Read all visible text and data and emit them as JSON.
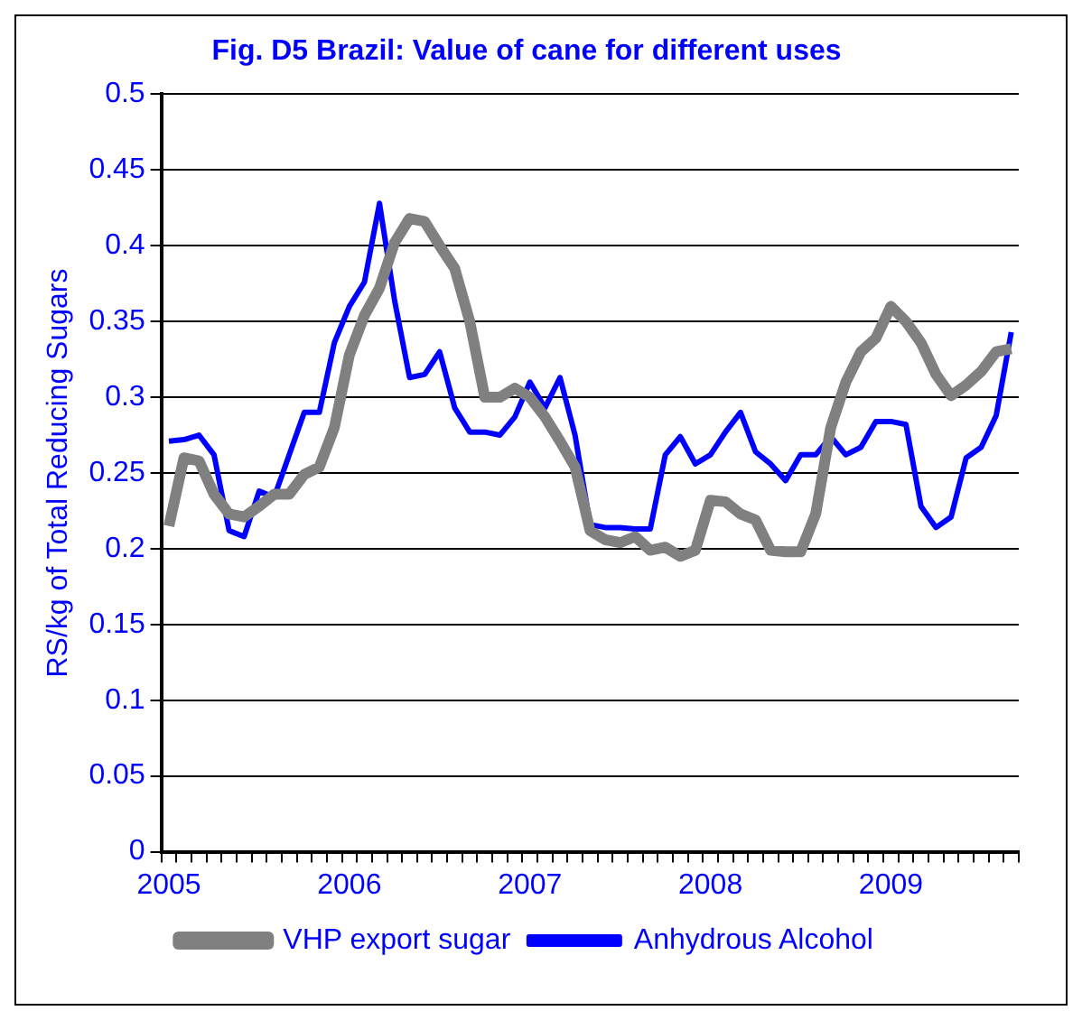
{
  "chart_data": {
    "type": "line",
    "title": "Fig. D5 Brazil: Value of cane for different uses",
    "ylabel": "RS/kg of Total Reducing Sugars",
    "categories": [
      "2005",
      null,
      null,
      null,
      null,
      null,
      null,
      null,
      null,
      null,
      null,
      null,
      "2006",
      null,
      null,
      null,
      null,
      null,
      null,
      null,
      null,
      null,
      null,
      null,
      "2007",
      null,
      null,
      null,
      null,
      null,
      null,
      null,
      null,
      null,
      null,
      null,
      "2008",
      null,
      null,
      null,
      null,
      null,
      null,
      null,
      null,
      null,
      null,
      null,
      "2009",
      null,
      null,
      null,
      null,
      null,
      null,
      null,
      null
    ],
    "series": [
      {
        "name": "VHP export sugar",
        "color": "#808080",
        "values": [
          0.215,
          0.26,
          0.258,
          0.236,
          0.223,
          0.221,
          0.228,
          0.236,
          0.236,
          0.249,
          0.254,
          0.28,
          0.328,
          0.354,
          0.372,
          0.402,
          0.418,
          0.416,
          0.4,
          0.385,
          0.35,
          0.3,
          0.3,
          0.306,
          0.3,
          0.287,
          0.271,
          0.254,
          0.212,
          0.206,
          0.204,
          0.208,
          0.199,
          0.201,
          0.195,
          0.199,
          0.232,
          0.231,
          0.223,
          0.219,
          0.199,
          0.198,
          0.198,
          0.223,
          0.28,
          0.31,
          0.33,
          0.339,
          0.36,
          0.35,
          0.336,
          0.315,
          0.301,
          0.308,
          0.317,
          0.33,
          0.332
        ]
      },
      {
        "name": "Anhydrous Alcohol",
        "color": "#0000ff",
        "values": [
          0.271,
          0.272,
          0.275,
          0.262,
          0.212,
          0.208,
          0.238,
          0.234,
          0.262,
          0.29,
          0.29,
          0.336,
          0.36,
          0.376,
          0.428,
          0.364,
          0.313,
          0.315,
          0.33,
          0.293,
          0.277,
          0.277,
          0.275,
          0.287,
          0.31,
          0.293,
          0.313,
          0.275,
          0.216,
          0.214,
          0.214,
          0.213,
          0.213,
          0.262,
          0.274,
          0.256,
          0.262,
          0.277,
          0.29,
          0.264,
          0.256,
          0.245,
          0.262,
          0.262,
          0.274,
          0.262,
          0.267,
          0.284,
          0.284,
          0.282,
          0.228,
          0.214,
          0.221,
          0.26,
          0.267,
          0.288,
          0.343
        ]
      }
    ],
    "ylim": [
      0,
      0.5
    ],
    "yticks": [
      0,
      0.05,
      0.1,
      0.15,
      0.2,
      0.25,
      0.3,
      0.35,
      0.4,
      0.45,
      0.5
    ],
    "grid": "y",
    "legend": "bottom",
    "marker": "none",
    "line_style": "solid"
  }
}
